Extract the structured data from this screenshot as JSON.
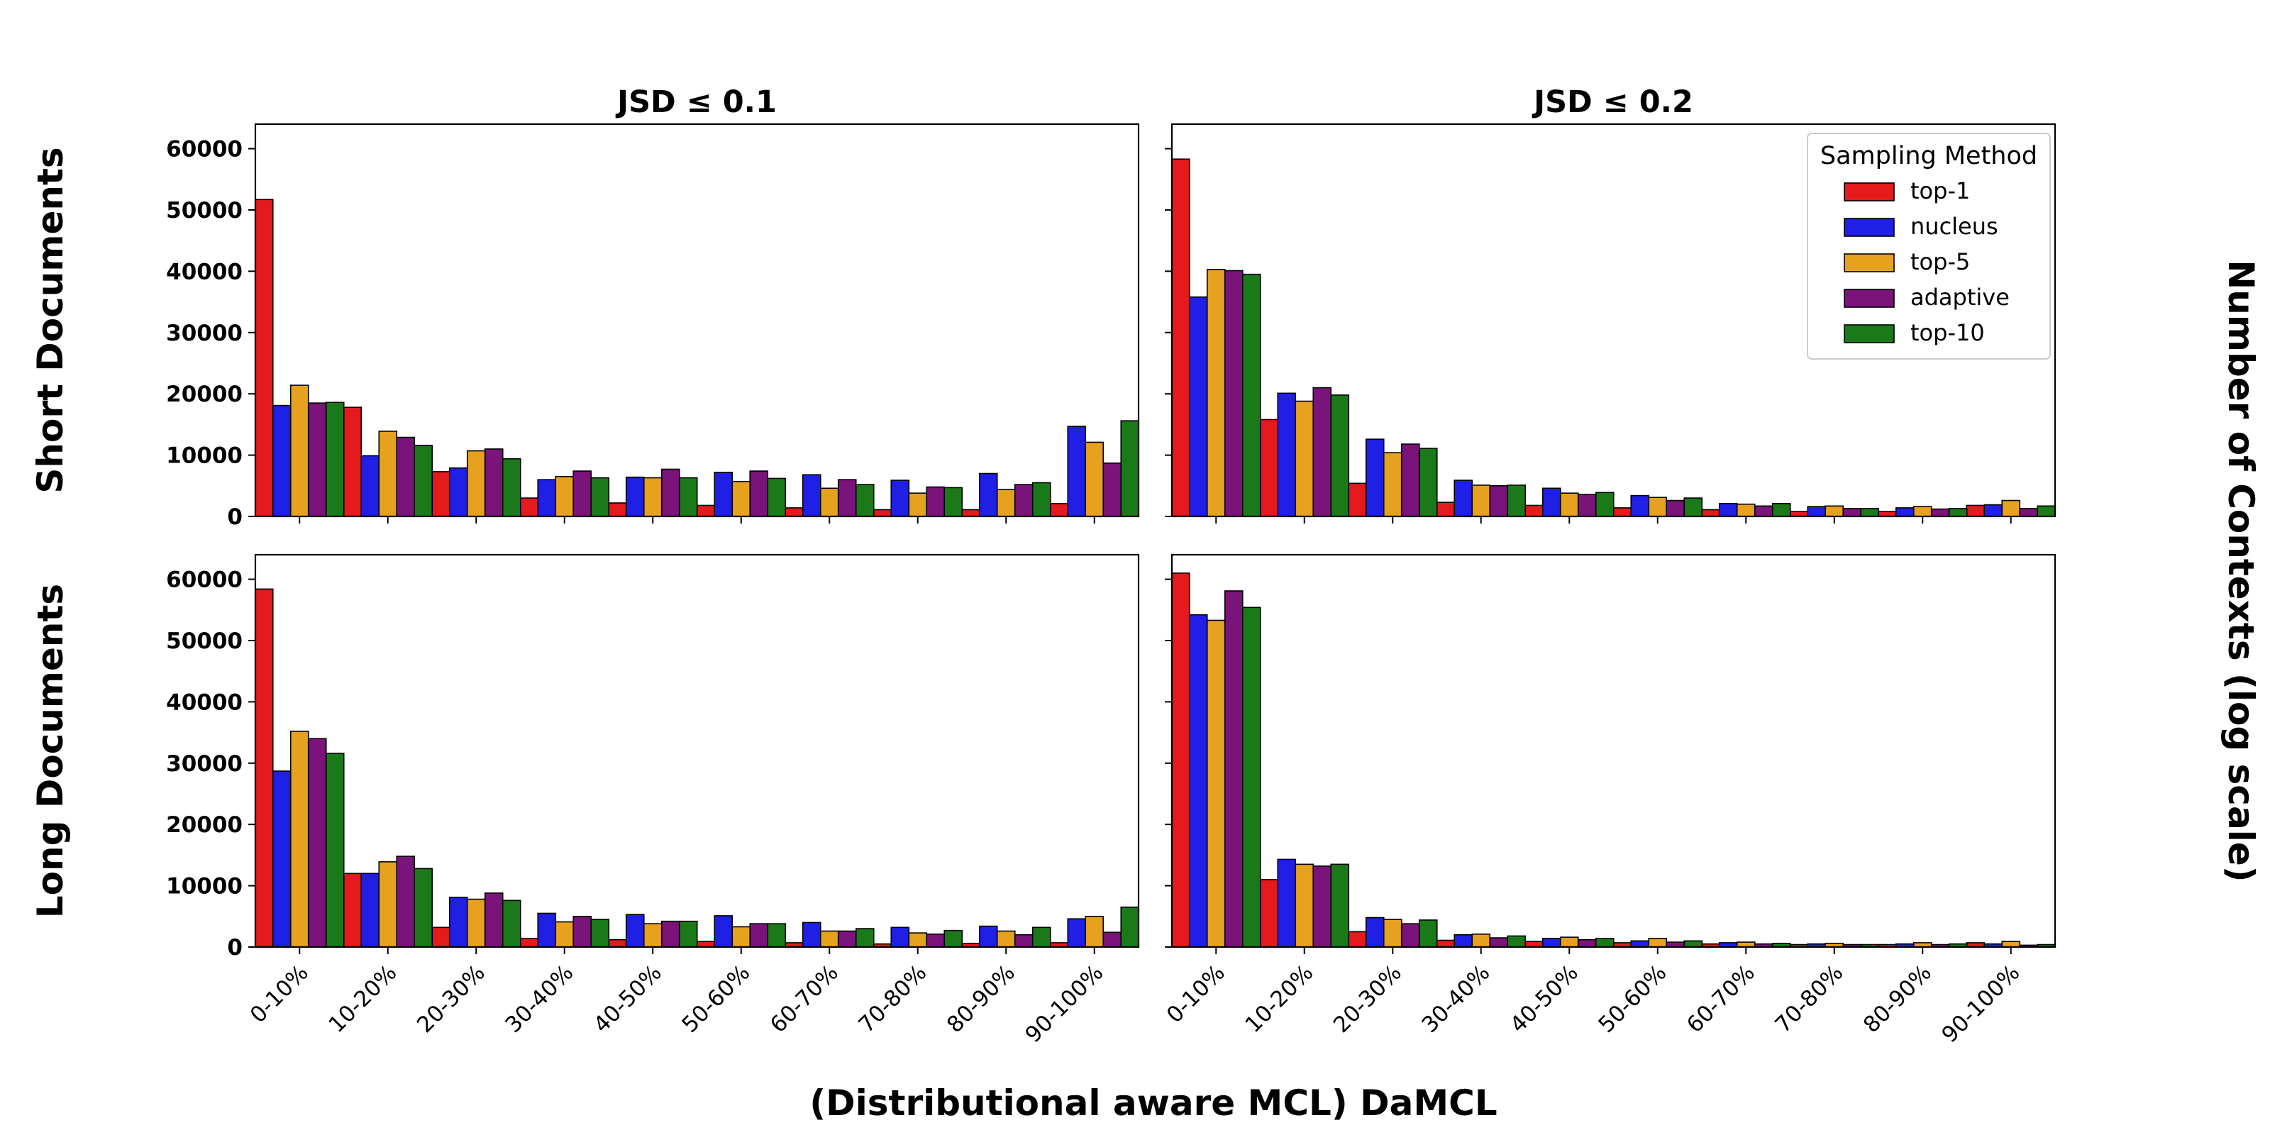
{
  "figure": {
    "ylabel_right": "Number of Contexts (log scale)",
    "xlabel": "(Distributional aware MCL) DaMCL"
  },
  "rows": [
    "Short Documents",
    "Long Documents"
  ],
  "columns": [
    "JSD ≤ 0.1",
    "JSD ≤ 0.2"
  ],
  "legend": {
    "title": "Sampling Method",
    "placement": "top-right of panel JSD ≤ 0.2 (Short Documents)"
  },
  "colors": {
    "top-1": "#e41a1c",
    "nucleus": "#1f1fe6",
    "top-5": "#e6a11f",
    "adaptive": "#7a137a",
    "top-10": "#1a7a1a"
  },
  "chart_data": {
    "type": "bar",
    "categories": [
      "0-10%",
      "10-20%",
      "20-30%",
      "30-40%",
      "40-50%",
      "50-60%",
      "60-70%",
      "70-80%",
      "80-90%",
      "90-100%"
    ],
    "ylim": [
      0,
      64000
    ],
    "yticks": [
      "0",
      "10000",
      "20000",
      "30000",
      "40000",
      "50000",
      "60000"
    ],
    "series_names": [
      "top-1",
      "nucleus",
      "top-5",
      "adaptive",
      "top-10"
    ],
    "panels": [
      {
        "row": "Short Documents",
        "column": "JSD ≤ 0.1",
        "series": [
          {
            "name": "top-1",
            "values": [
              51700,
              17800,
              7300,
              3000,
              2200,
              1800,
              1400,
              1100,
              1100,
              2100
            ]
          },
          {
            "name": "nucleus",
            "values": [
              18100,
              9900,
              7900,
              6000,
              6400,
              7200,
              6800,
              5900,
              7000,
              14700
            ]
          },
          {
            "name": "top-5",
            "values": [
              21400,
              13900,
              10700,
              6500,
              6300,
              5700,
              4600,
              3800,
              4400,
              12100
            ]
          },
          {
            "name": "adaptive",
            "values": [
              18500,
              12900,
              11000,
              7400,
              7700,
              7400,
              6000,
              4800,
              5200,
              8700
            ]
          },
          {
            "name": "top-10",
            "values": [
              18600,
              11600,
              9400,
              6300,
              6300,
              6200,
              5200,
              4700,
              5500,
              15600
            ]
          }
        ]
      },
      {
        "row": "Short Documents",
        "column": "JSD ≤ 0.2",
        "series": [
          {
            "name": "top-1",
            "values": [
              58300,
              15800,
              5400,
              2300,
              1800,
              1400,
              1100,
              800,
              800,
              1800
            ]
          },
          {
            "name": "nucleus",
            "values": [
              35800,
              20100,
              12600,
              5900,
              4600,
              3400,
              2100,
              1600,
              1400,
              1900
            ]
          },
          {
            "name": "top-5",
            "values": [
              40300,
              18800,
              10400,
              5100,
              3800,
              3100,
              2000,
              1700,
              1600,
              2600
            ]
          },
          {
            "name": "adaptive",
            "values": [
              40100,
              21000,
              11800,
              5000,
              3600,
              2600,
              1700,
              1300,
              1200,
              1300
            ]
          },
          {
            "name": "top-10",
            "values": [
              39500,
              19800,
              11100,
              5100,
              3900,
              3000,
              2100,
              1300,
              1300,
              1700
            ]
          }
        ]
      },
      {
        "row": "Long Documents",
        "column": "JSD ≤ 0.1",
        "series": [
          {
            "name": "top-1",
            "values": [
              58400,
              12000,
              3200,
              1400,
              1200,
              900,
              700,
              500,
              600,
              700
            ]
          },
          {
            "name": "nucleus",
            "values": [
              28700,
              12000,
              8100,
              5500,
              5300,
              5100,
              4000,
              3200,
              3400,
              4600
            ]
          },
          {
            "name": "top-5",
            "values": [
              35200,
              13900,
              7800,
              4100,
              3800,
              3300,
              2600,
              2300,
              2600,
              5000
            ]
          },
          {
            "name": "adaptive",
            "values": [
              34000,
              14800,
              8800,
              5000,
              4200,
              3800,
              2600,
              2100,
              2000,
              2400
            ]
          },
          {
            "name": "top-10",
            "values": [
              31600,
              12800,
              7600,
              4500,
              4200,
              3800,
              3000,
              2700,
              3200,
              6500
            ]
          }
        ]
      },
      {
        "row": "Long Documents",
        "column": "JSD ≤ 0.2",
        "series": [
          {
            "name": "top-1",
            "values": [
              61000,
              11000,
              2500,
              1100,
              900,
              700,
              500,
              400,
              400,
              700
            ]
          },
          {
            "name": "nucleus",
            "values": [
              54200,
              14300,
              4800,
              2000,
              1400,
              1000,
              700,
              500,
              500,
              500
            ]
          },
          {
            "name": "top-5",
            "values": [
              53300,
              13500,
              4500,
              2100,
              1600,
              1400,
              800,
              600,
              700,
              900
            ]
          },
          {
            "name": "adaptive",
            "values": [
              58100,
              13200,
              3800,
              1500,
              1200,
              800,
              500,
              400,
              400,
              300
            ]
          },
          {
            "name": "top-10",
            "values": [
              55400,
              13500,
              4400,
              1800,
              1400,
              1000,
              600,
              400,
              500,
              400
            ]
          }
        ]
      }
    ]
  }
}
